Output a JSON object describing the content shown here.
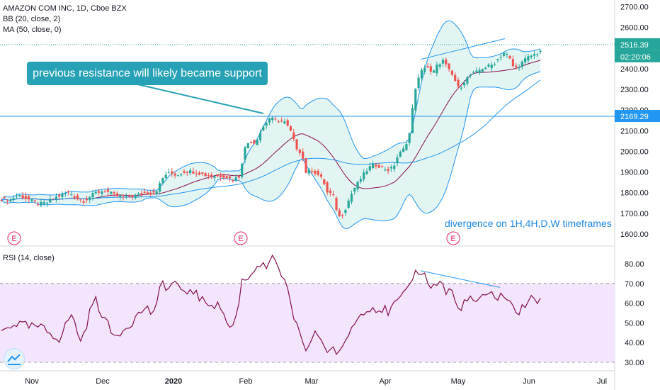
{
  "header": {
    "symbol_line": "AMAZON COM INC, 1D, Cboe BZX",
    "bb_line": "BB (20, close, 2)",
    "ma_line": "MA (50, close, 0)",
    "rsi_line": "RSI (14, close)"
  },
  "price_tags": {
    "last_price": "2516.39",
    "countdown": "02:20:06",
    "level": "2169.29"
  },
  "annotations": {
    "callout": "previous resistance will likely became support",
    "divergence": "divergence on 1H,4H,D,W timeframes",
    "earnings_marker": "E"
  },
  "colors": {
    "up": "#26a69a",
    "down": "#ef5350",
    "bb_band": "#2196f3",
    "bb_fill": "#e0f4f1",
    "bb_basis": "#880e4f",
    "ma": "#2196f3",
    "rsi_line": "#880e4f",
    "rsi_band": "#f3e5fb",
    "level_line": "#2196f3",
    "callout_bg": "#26a1b5",
    "earnings": "#e91e63"
  },
  "chart_data": [
    {
      "type": "candlestick",
      "title": "AMAZON COM INC, 1D, Cboe BZX",
      "x_ticks": [
        "Nov",
        "Dec",
        "2020",
        "Feb",
        "Mar",
        "Apr",
        "May",
        "Jun",
        "Jul"
      ],
      "y_ticks": [
        "1600.00",
        "1700.00",
        "1800.00",
        "1900.00",
        "2000.00",
        "2100.00",
        "2200.00",
        "2300.00",
        "2400.00",
        "2500.00",
        "2600.00",
        "2700.00"
      ],
      "ylim": [
        1570,
        2730
      ],
      "horizontal_level": 2169.29,
      "last_price": 2516.39,
      "close_anchors": [
        [
          0,
          1770
        ],
        [
          15,
          1765
        ],
        [
          25,
          1790
        ],
        [
          35,
          1775
        ],
        [
          45,
          1760
        ],
        [
          55,
          1745
        ],
        [
          65,
          1750
        ],
        [
          80,
          1780
        ],
        [
          95,
          1800
        ],
        [
          100,
          1795
        ],
        [
          110,
          1770
        ],
        [
          118,
          1760
        ],
        [
          125,
          1775
        ],
        [
          135,
          1800
        ],
        [
          148,
          1810
        ],
        [
          160,
          1790
        ],
        [
          175,
          1775
        ],
        [
          190,
          1785
        ],
        [
          205,
          1800
        ],
        [
          215,
          1800
        ],
        [
          222,
          1815
        ],
        [
          232,
          1885
        ],
        [
          240,
          1895
        ],
        [
          250,
          1885
        ],
        [
          262,
          1905
        ],
        [
          275,
          1900
        ],
        [
          290,
          1885
        ],
        [
          305,
          1880
        ],
        [
          318,
          1880
        ],
        [
          328,
          1860
        ],
        [
          338,
          1880
        ],
        [
          345,
          2010
        ],
        [
          352,
          2050
        ],
        [
          360,
          2040
        ],
        [
          370,
          2110
        ],
        [
          380,
          2160
        ],
        [
          390,
          2150
        ],
        [
          402,
          2140
        ],
        [
          410,
          2100
        ],
        [
          418,
          2020
        ],
        [
          426,
          1990
        ],
        [
          432,
          1900
        ],
        [
          440,
          1910
        ],
        [
          448,
          1890
        ],
        [
          456,
          1860
        ],
        [
          462,
          1800
        ],
        [
          470,
          1790
        ],
        [
          478,
          1680
        ],
        [
          485,
          1700
        ],
        [
          492,
          1760
        ],
        [
          500,
          1820
        ],
        [
          508,
          1860
        ],
        [
          516,
          1900
        ],
        [
          524,
          1930
        ],
        [
          532,
          1935
        ],
        [
          540,
          1920
        ],
        [
          548,
          1910
        ],
        [
          555,
          1920
        ],
        [
          562,
          1980
        ],
        [
          570,
          2010
        ],
        [
          578,
          2080
        ],
        [
          586,
          2300
        ],
        [
          594,
          2380
        ],
        [
          602,
          2420
        ],
        [
          610,
          2370
        ],
        [
          618,
          2420
        ],
        [
          626,
          2440
        ],
        [
          632,
          2400
        ],
        [
          640,
          2360
        ],
        [
          648,
          2300
        ],
        [
          656,
          2340
        ],
        [
          664,
          2370
        ],
        [
          672,
          2380
        ],
        [
          680,
          2400
        ],
        [
          688,
          2410
        ],
        [
          696,
          2420
        ],
        [
          704,
          2450
        ],
        [
          712,
          2480
        ],
        [
          718,
          2460
        ],
        [
          726,
          2400
        ],
        [
          732,
          2410
        ],
        [
          740,
          2440
        ],
        [
          748,
          2460
        ],
        [
          756,
          2470
        ],
        [
          762,
          2480
        ],
        [
          767,
          2516
        ]
      ],
      "bollinger": {
        "period": 20,
        "std": 2
      },
      "ma": {
        "period": 50
      },
      "earnings_markers": [
        "E",
        "E",
        "E"
      ],
      "trend_lines": [
        {
          "from": [
            594,
            2445
          ],
          "to": [
            713,
            2545
          ]
        }
      ]
    },
    {
      "type": "line",
      "title": "RSI (14, close)",
      "y_ticks": [
        "30.00",
        "40.00",
        "50.00",
        "60.00",
        "70.00",
        "80.00"
      ],
      "ylim": [
        27,
        84
      ],
      "bands": [
        30,
        70
      ],
      "values_anchors": [
        [
          0,
          45
        ],
        [
          20,
          50
        ],
        [
          40,
          48
        ],
        [
          55,
          48
        ],
        [
          70,
          45
        ],
        [
          85,
          42
        ],
        [
          100,
          55
        ],
        [
          115,
          40
        ],
        [
          133,
          63
        ],
        [
          148,
          52
        ],
        [
          160,
          43
        ],
        [
          175,
          47
        ],
        [
          190,
          52
        ],
        [
          205,
          58
        ],
        [
          215,
          55
        ],
        [
          222,
          58
        ],
        [
          228,
          72
        ],
        [
          238,
          67
        ],
        [
          248,
          72
        ],
        [
          258,
          63
        ],
        [
          270,
          68
        ],
        [
          285,
          61
        ],
        [
          300,
          60
        ],
        [
          315,
          57
        ],
        [
          322,
          47
        ],
        [
          332,
          50
        ],
        [
          342,
          72
        ],
        [
          352,
          73
        ],
        [
          362,
          80
        ],
        [
          375,
          78
        ],
        [
          385,
          82
        ],
        [
          395,
          77
        ],
        [
          405,
          68
        ],
        [
          415,
          50
        ],
        [
          425,
          45
        ],
        [
          432,
          35
        ],
        [
          440,
          42
        ],
        [
          448,
          45
        ],
        [
          456,
          40
        ],
        [
          464,
          35
        ],
        [
          472,
          38
        ],
        [
          478,
          33
        ],
        [
          486,
          38
        ],
        [
          494,
          47
        ],
        [
          502,
          50
        ],
        [
          510,
          55
        ],
        [
          518,
          58
        ],
        [
          526,
          58
        ],
        [
          534,
          57
        ],
        [
          542,
          57
        ],
        [
          550,
          55
        ],
        [
          558,
          60
        ],
        [
          566,
          62
        ],
        [
          574,
          65
        ],
        [
          582,
          73
        ],
        [
          590,
          77
        ],
        [
          598,
          75
        ],
        [
          606,
          70
        ],
        [
          614,
          68
        ],
        [
          622,
          72
        ],
        [
          630,
          65
        ],
        [
          638,
          67
        ],
        [
          646,
          56
        ],
        [
          654,
          60
        ],
        [
          662,
          62
        ],
        [
          670,
          60
        ],
        [
          678,
          63
        ],
        [
          686,
          62
        ],
        [
          694,
          65
        ],
        [
          702,
          63
        ],
        [
          710,
          65
        ],
        [
          718,
          60
        ],
        [
          726,
          58
        ],
        [
          734,
          55
        ],
        [
          742,
          60
        ],
        [
          750,
          62
        ],
        [
          758,
          60
        ],
        [
          766,
          65
        ]
      ],
      "trend_lines": [
        {
          "from": [
            594,
            76.5
          ],
          "to": [
            706,
            68
          ]
        }
      ]
    }
  ]
}
